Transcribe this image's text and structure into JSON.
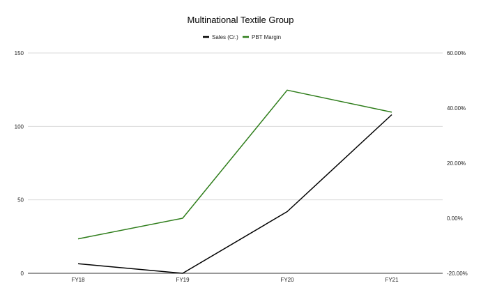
{
  "chart_data": {
    "type": "line",
    "title": "Multinational Textile Group",
    "categories": [
      "FY18",
      "FY19",
      "FY20",
      "FY21"
    ],
    "legend": {
      "placement": "top-center"
    },
    "grid": true,
    "left_axis": {
      "range": [
        0,
        150
      ],
      "ticks": [
        0,
        50,
        100,
        150
      ],
      "tick_labels": [
        "0",
        "50",
        "100",
        "150"
      ]
    },
    "right_axis": {
      "range": [
        -0.2,
        0.6
      ],
      "ticks": [
        -0.2,
        0.0,
        0.2,
        0.4,
        0.6
      ],
      "tick_labels": [
        "-20.00%",
        "0.00%",
        "20.00%",
        "40.00%",
        "60.00%"
      ]
    },
    "series": [
      {
        "name": "Sales (Cr.)",
        "axis": "left",
        "color": "#000000",
        "values": [
          6.5,
          0,
          42,
          108
        ]
      },
      {
        "name": "PBT Margin",
        "axis": "right",
        "color": "#2e7d1a",
        "values": [
          -0.075,
          0.0,
          0.465,
          0.385
        ]
      }
    ]
  }
}
